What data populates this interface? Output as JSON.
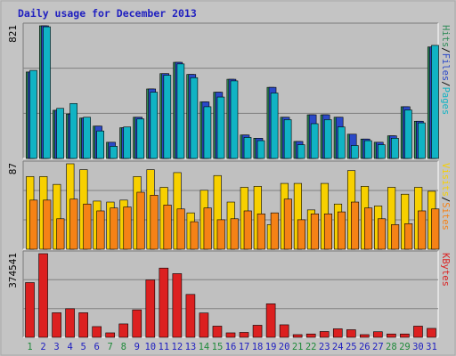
{
  "chart_data": {
    "title": "Daily usage for December 2013",
    "days": [
      "1",
      "2",
      "3",
      "4",
      "5",
      "6",
      "7",
      "8",
      "9",
      "10",
      "11",
      "12",
      "13",
      "14",
      "15",
      "16",
      "17",
      "18",
      "19",
      "20",
      "21",
      "22",
      "23",
      "24",
      "25",
      "26",
      "27",
      "28",
      "29",
      "30",
      "31"
    ],
    "weekend_days": [
      "1",
      "7",
      "8",
      "14",
      "15",
      "21",
      "22",
      "28",
      "29"
    ],
    "colors": {
      "pages": "#2e8b57",
      "files": "#2a49c8",
      "hits": "#10b3c4",
      "visits": "#f7d000",
      "sites": "#f58216",
      "kbytes": "#dc2020",
      "title": "#2020c0",
      "weekday_label": "#2020c0",
      "weekend_label": "#1f8a3a",
      "plot_background": "#c0c0c0"
    },
    "panels": [
      {
        "id": "hits",
        "type": "bar",
        "max_label": "821",
        "ymax": 821,
        "legend": [
          {
            "text": "Pages",
            "color": "#10b3c4"
          },
          {
            "text": "/",
            "color": "#000000"
          },
          {
            "text": "Files",
            "color": "#2a49c8"
          },
          {
            "text": "/",
            "color": "#000000"
          },
          {
            "text": "Hits",
            "color": "#2e8b57"
          }
        ],
        "series": [
          {
            "key": "pages",
            "color": "#2e8b57",
            "values": [
              535,
              821,
              298,
              275,
              250,
              200,
              100,
              190,
              255,
              430,
              525,
              595,
              520,
              350,
              410,
              490,
              145,
              125,
              440,
              255,
              105,
              270,
              270,
              255,
              150,
              120,
              100,
              140,
              320,
              230,
              690
            ]
          },
          {
            "key": "files",
            "color": "#2a49c8",
            "values": [
              535,
              821,
              298,
              275,
              250,
              200,
              100,
              190,
              255,
              430,
              525,
              595,
              520,
              350,
              410,
              490,
              145,
              125,
              440,
              255,
              105,
              270,
              270,
              255,
              150,
              120,
              100,
              140,
              320,
              230,
              690
            ]
          },
          {
            "key": "hits",
            "color": "#10b3c4",
            "values": [
              545,
              815,
              310,
              340,
              255,
              170,
              75,
              195,
              245,
              410,
              515,
              585,
              500,
              320,
              380,
              480,
              130,
              110,
              405,
              240,
              85,
              215,
              240,
              195,
              80,
              110,
              85,
              125,
              300,
              220,
              700
            ]
          }
        ],
        "gridlines": [
          0.333,
          0.667
        ]
      },
      {
        "id": "visits",
        "type": "bar",
        "max_label": "87",
        "ymax": 87,
        "legend": [
          {
            "text": "Sites",
            "color": "#f58216"
          },
          {
            "text": "/",
            "color": "#000000"
          },
          {
            "text": "Visits",
            "color": "#f7d000"
          }
        ],
        "series": [
          {
            "key": "visits",
            "color": "#f7d000",
            "values": [
              74,
              74,
              66,
              87,
              81,
              49,
              48,
              50,
              74,
              81,
              63,
              78,
              37,
              60,
              75,
              48,
              63,
              64,
              25,
              67,
              67,
              40,
              67,
              46,
              80,
              64,
              44,
              63,
              56,
              63,
              59
            ]
          },
          {
            "key": "sites",
            "color": "#f58216",
            "values": [
              50,
              50,
              31,
              51,
              46,
              39,
              42,
              43,
              58,
              55,
              45,
              41,
              28,
              42,
              30,
              31,
              39,
              36,
              37,
              51,
              30,
              36,
              36,
              38,
              48,
              42,
              31,
              25,
              26,
              39,
              41
            ]
          }
        ],
        "gridlines": [
          0.333,
          0.667
        ]
      },
      {
        "id": "kbytes",
        "type": "bar",
        "max_label": "374541",
        "ymax": 374541,
        "legend": [
          {
            "text": "KBytes",
            "color": "#dc2020"
          }
        ],
        "series": [
          {
            "key": "kbytes",
            "color": "#dc2020",
            "values": [
              245000,
              374541,
              110000,
              128000,
              110000,
              48000,
              20000,
              60000,
              123000,
              257000,
              310000,
              285000,
              192000,
              109000,
              50000,
              20000,
              22000,
              54000,
              150000,
              56000,
              12000,
              15000,
              26000,
              38000,
              34000,
              12000,
              25000,
              15000,
              15000,
              50000,
              40000
            ]
          }
        ],
        "gridlines": [
          0.333,
          0.667
        ]
      }
    ]
  }
}
